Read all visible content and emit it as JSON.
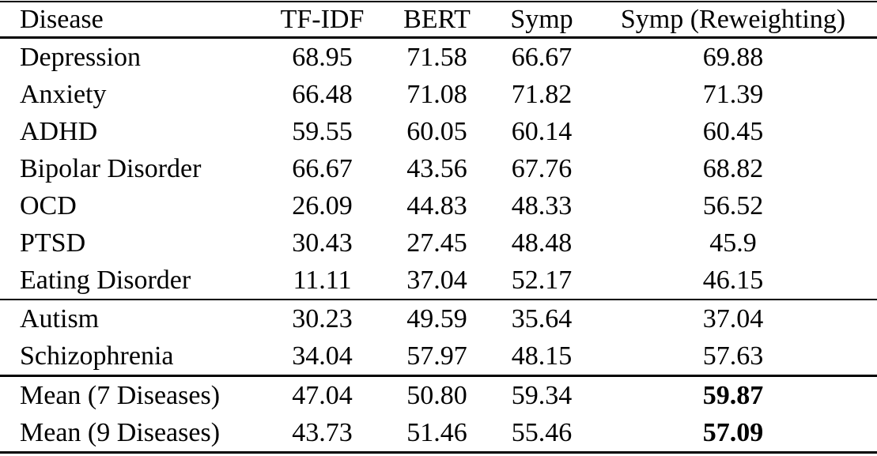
{
  "table": {
    "columns": [
      "Disease",
      "TF-IDF",
      "BERT",
      "Symp",
      "Symp (Reweighting)"
    ],
    "text_color": "#000000",
    "background_color": "#ffffff",
    "groups": [
      {
        "rows": [
          {
            "label": "Depression",
            "values": [
              "68.95",
              "71.58",
              "66.67",
              "69.88"
            ]
          },
          {
            "label": "Anxiety",
            "values": [
              "66.48",
              "71.08",
              "71.82",
              "71.39"
            ]
          },
          {
            "label": "ADHD",
            "values": [
              "59.55",
              "60.05",
              "60.14",
              "60.45"
            ]
          },
          {
            "label": "Bipolar Disorder",
            "values": [
              "66.67",
              "43.56",
              "67.76",
              "68.82"
            ]
          },
          {
            "label": "OCD",
            "values": [
              "26.09",
              "44.83",
              "48.33",
              "56.52"
            ]
          },
          {
            "label": "PTSD",
            "values": [
              "30.43",
              "27.45",
              "48.48",
              "45.9"
            ]
          },
          {
            "label": "Eating Disorder",
            "values": [
              "11.11",
              "37.04",
              "52.17",
              "46.15"
            ]
          }
        ]
      },
      {
        "rows": [
          {
            "label": "Autism",
            "values": [
              "30.23",
              "49.59",
              "35.64",
              "37.04"
            ]
          },
          {
            "label": "Schizophrenia",
            "values": [
              "34.04",
              "57.97",
              "48.15",
              "57.63"
            ]
          }
        ]
      },
      {
        "rows": [
          {
            "label": "Mean (7 Diseases)",
            "values": [
              "47.04",
              "50.80",
              "59.34",
              "59.87"
            ],
            "bold": [
              false,
              false,
              false,
              true
            ]
          },
          {
            "label": "Mean (9 Diseases)",
            "values": [
              "43.73",
              "51.46",
              "55.46",
              "57.09"
            ],
            "bold": [
              false,
              false,
              false,
              true
            ]
          }
        ]
      }
    ]
  }
}
